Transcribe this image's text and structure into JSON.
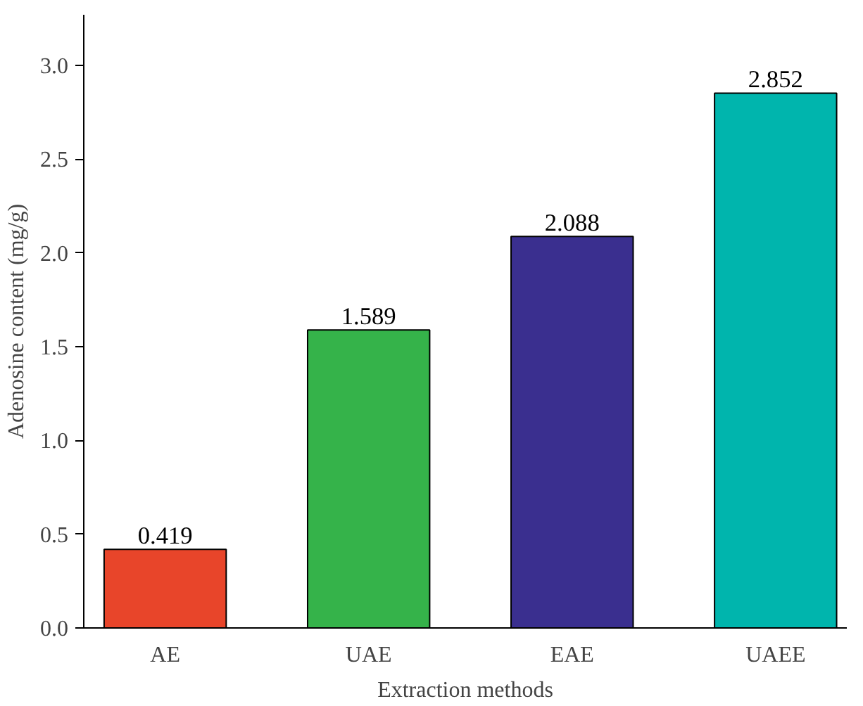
{
  "chart_data": {
    "type": "bar",
    "xlabel": "Extraction methods",
    "ylabel": "Adenosine content (mg/g)",
    "categories": [
      "AE",
      "UAE",
      "EAE",
      "UAEE"
    ],
    "values": [
      0.419,
      1.589,
      2.088,
      2.852
    ],
    "colors": [
      "#e8452a",
      "#35b34a",
      "#3a2f8f",
      "#00b5ad"
    ],
    "ylim": [
      0,
      3.27
    ],
    "yticks": [
      {
        "value": 0,
        "label": "0.0"
      },
      {
        "value": 0.5,
        "label": "0.5"
      },
      {
        "value": 1,
        "label": "1.0"
      },
      {
        "value": 1.5,
        "label": "1.5"
      },
      {
        "value": 2,
        "label": "2.0"
      },
      {
        "value": 2.5,
        "label": "2.5"
      },
      {
        "value": 3,
        "label": "3.0"
      }
    ],
    "data_labels": true,
    "grid": false
  }
}
